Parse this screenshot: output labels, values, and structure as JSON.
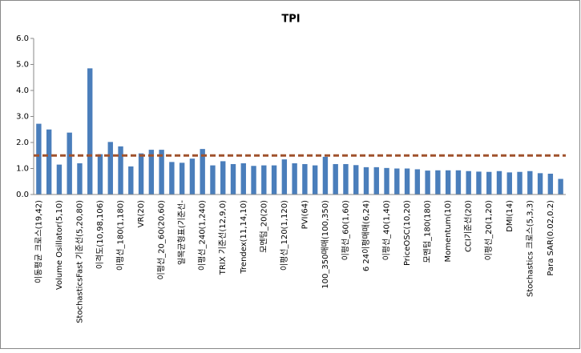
{
  "chart_data": {
    "type": "bar",
    "title": "TPI",
    "categories": [
      "이동평균 크로스(19,42)",
      null,
      "Volume Osillator(5,10)",
      null,
      "StochasticsFast 기준선(5,20,80)",
      null,
      "이격도(10,98,106)",
      null,
      "이평선_180(1,180)",
      null,
      "VR(20)",
      null,
      "이평선_20_60(20,60)",
      null,
      "일목균형표(기준선-",
      null,
      "이평선_240(1,240)",
      null,
      "TRIX 기준선(12,9,0)",
      null,
      "Trendex(11,14,10)",
      null,
      "모멘텀_20(20)",
      null,
      "이평선_120(1,120)",
      null,
      "PVI(64)",
      null,
      "100_350매매(100,350)",
      null,
      "이평선_60(1,60)",
      null,
      "6 24이평매매(6,24)",
      null,
      "이평선_40(1,40)",
      null,
      "PriceOSC(10,20)",
      null,
      "모멘텀_180(180)",
      null,
      "Momentum(10)",
      null,
      "CCI기준선(20)",
      null,
      "이평선_20(1,20)",
      null,
      "DMI(14)",
      null,
      "Stochastics 크로스(5,3,3)",
      null,
      "Para SAR(0.02,0.2)",
      null
    ],
    "values": [
      2.72,
      2.5,
      1.15,
      2.38,
      1.2,
      4.85,
      1.55,
      2.02,
      1.85,
      1.08,
      1.58,
      1.72,
      1.72,
      1.25,
      1.22,
      1.38,
      1.75,
      1.12,
      1.28,
      1.17,
      1.2,
      1.1,
      1.12,
      1.12,
      1.35,
      1.2,
      1.17,
      1.12,
      1.45,
      1.17,
      1.17,
      1.13,
      1.05,
      1.05,
      1.02,
      1.0,
      1.0,
      0.97,
      0.92,
      0.93,
      0.93,
      0.93,
      0.9,
      0.88,
      0.87,
      0.9,
      0.85,
      0.87,
      0.9,
      0.82,
      0.8,
      0.6
    ],
    "color": "#4a7ebb",
    "ylim": [
      0,
      6
    ],
    "yticks": [
      {
        "value": 0,
        "label": "0.0"
      },
      {
        "value": 1,
        "label": "1.0"
      },
      {
        "value": 2,
        "label": "2.0"
      },
      {
        "value": 3,
        "label": "3.0"
      },
      {
        "value": 4,
        "label": "4.0"
      },
      {
        "value": 5,
        "label": "5.0"
      },
      {
        "value": 6,
        "label": "6.0"
      }
    ],
    "grid": false,
    "reference_line": {
      "value": 1.5,
      "color": "#a0522d"
    }
  }
}
